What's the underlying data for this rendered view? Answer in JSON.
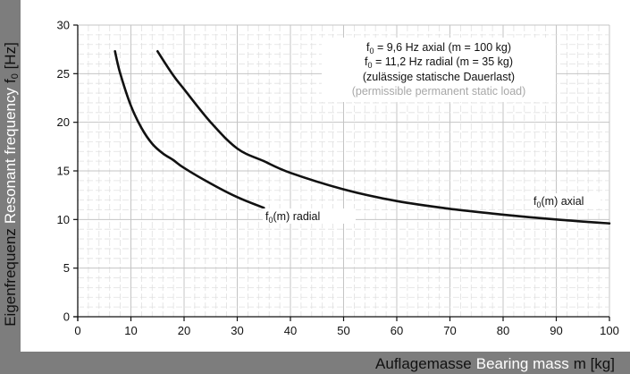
{
  "chart_data": {
    "type": "line",
    "x_title_de": "Auflagemasse",
    "x_title_en": "Bearing mass",
    "x_title_unit": "m [kg]",
    "y_title_de": "Eigenfrequenz",
    "y_title_en": "Resonant frequency",
    "y_title_unit": "f",
    "y_title_unit_sub": "0",
    "y_title_unit_tail": " [Hz]",
    "xlim": [
      0,
      100
    ],
    "ylim": [
      0,
      30
    ],
    "xticks": [
      "0",
      "10",
      "20",
      "30",
      "40",
      "50",
      "60",
      "70",
      "80",
      "90",
      "100"
    ],
    "yticks": [
      "0",
      "5",
      "10",
      "15",
      "20",
      "25",
      "30"
    ],
    "grid": true,
    "annotation": {
      "line1_pre": "f",
      "line1_sub": "0",
      "line1_post": " = 9,6 Hz axial (m = 100 kg)",
      "line2_pre": "f",
      "line2_sub": "0",
      "line2_post": " = 11,2 Hz radial (m = 35 kg)",
      "line3": "(zulässige statische Dauerlast)",
      "line4": "(permissible permanent static load)"
    },
    "series": [
      {
        "label_pre": "f",
        "label_sub": "0",
        "label_post": "(m) radial",
        "x": [
          7,
          8,
          10,
          12,
          14,
          16,
          18,
          20,
          25,
          30,
          35
        ],
        "y": [
          27.3,
          25.0,
          21.7,
          19.4,
          17.8,
          16.8,
          16.1,
          15.3,
          13.7,
          12.3,
          11.2
        ]
      },
      {
        "label_pre": "f",
        "label_sub": "0",
        "label_post": "(m) axial",
        "x": [
          15,
          18,
          20,
          25,
          30,
          35,
          40,
          50,
          60,
          70,
          80,
          90,
          100
        ],
        "y": [
          27.3,
          24.8,
          23.4,
          20.0,
          17.3,
          16.0,
          14.8,
          13.1,
          11.9,
          11.1,
          10.5,
          10.0,
          9.6
        ]
      }
    ]
  }
}
